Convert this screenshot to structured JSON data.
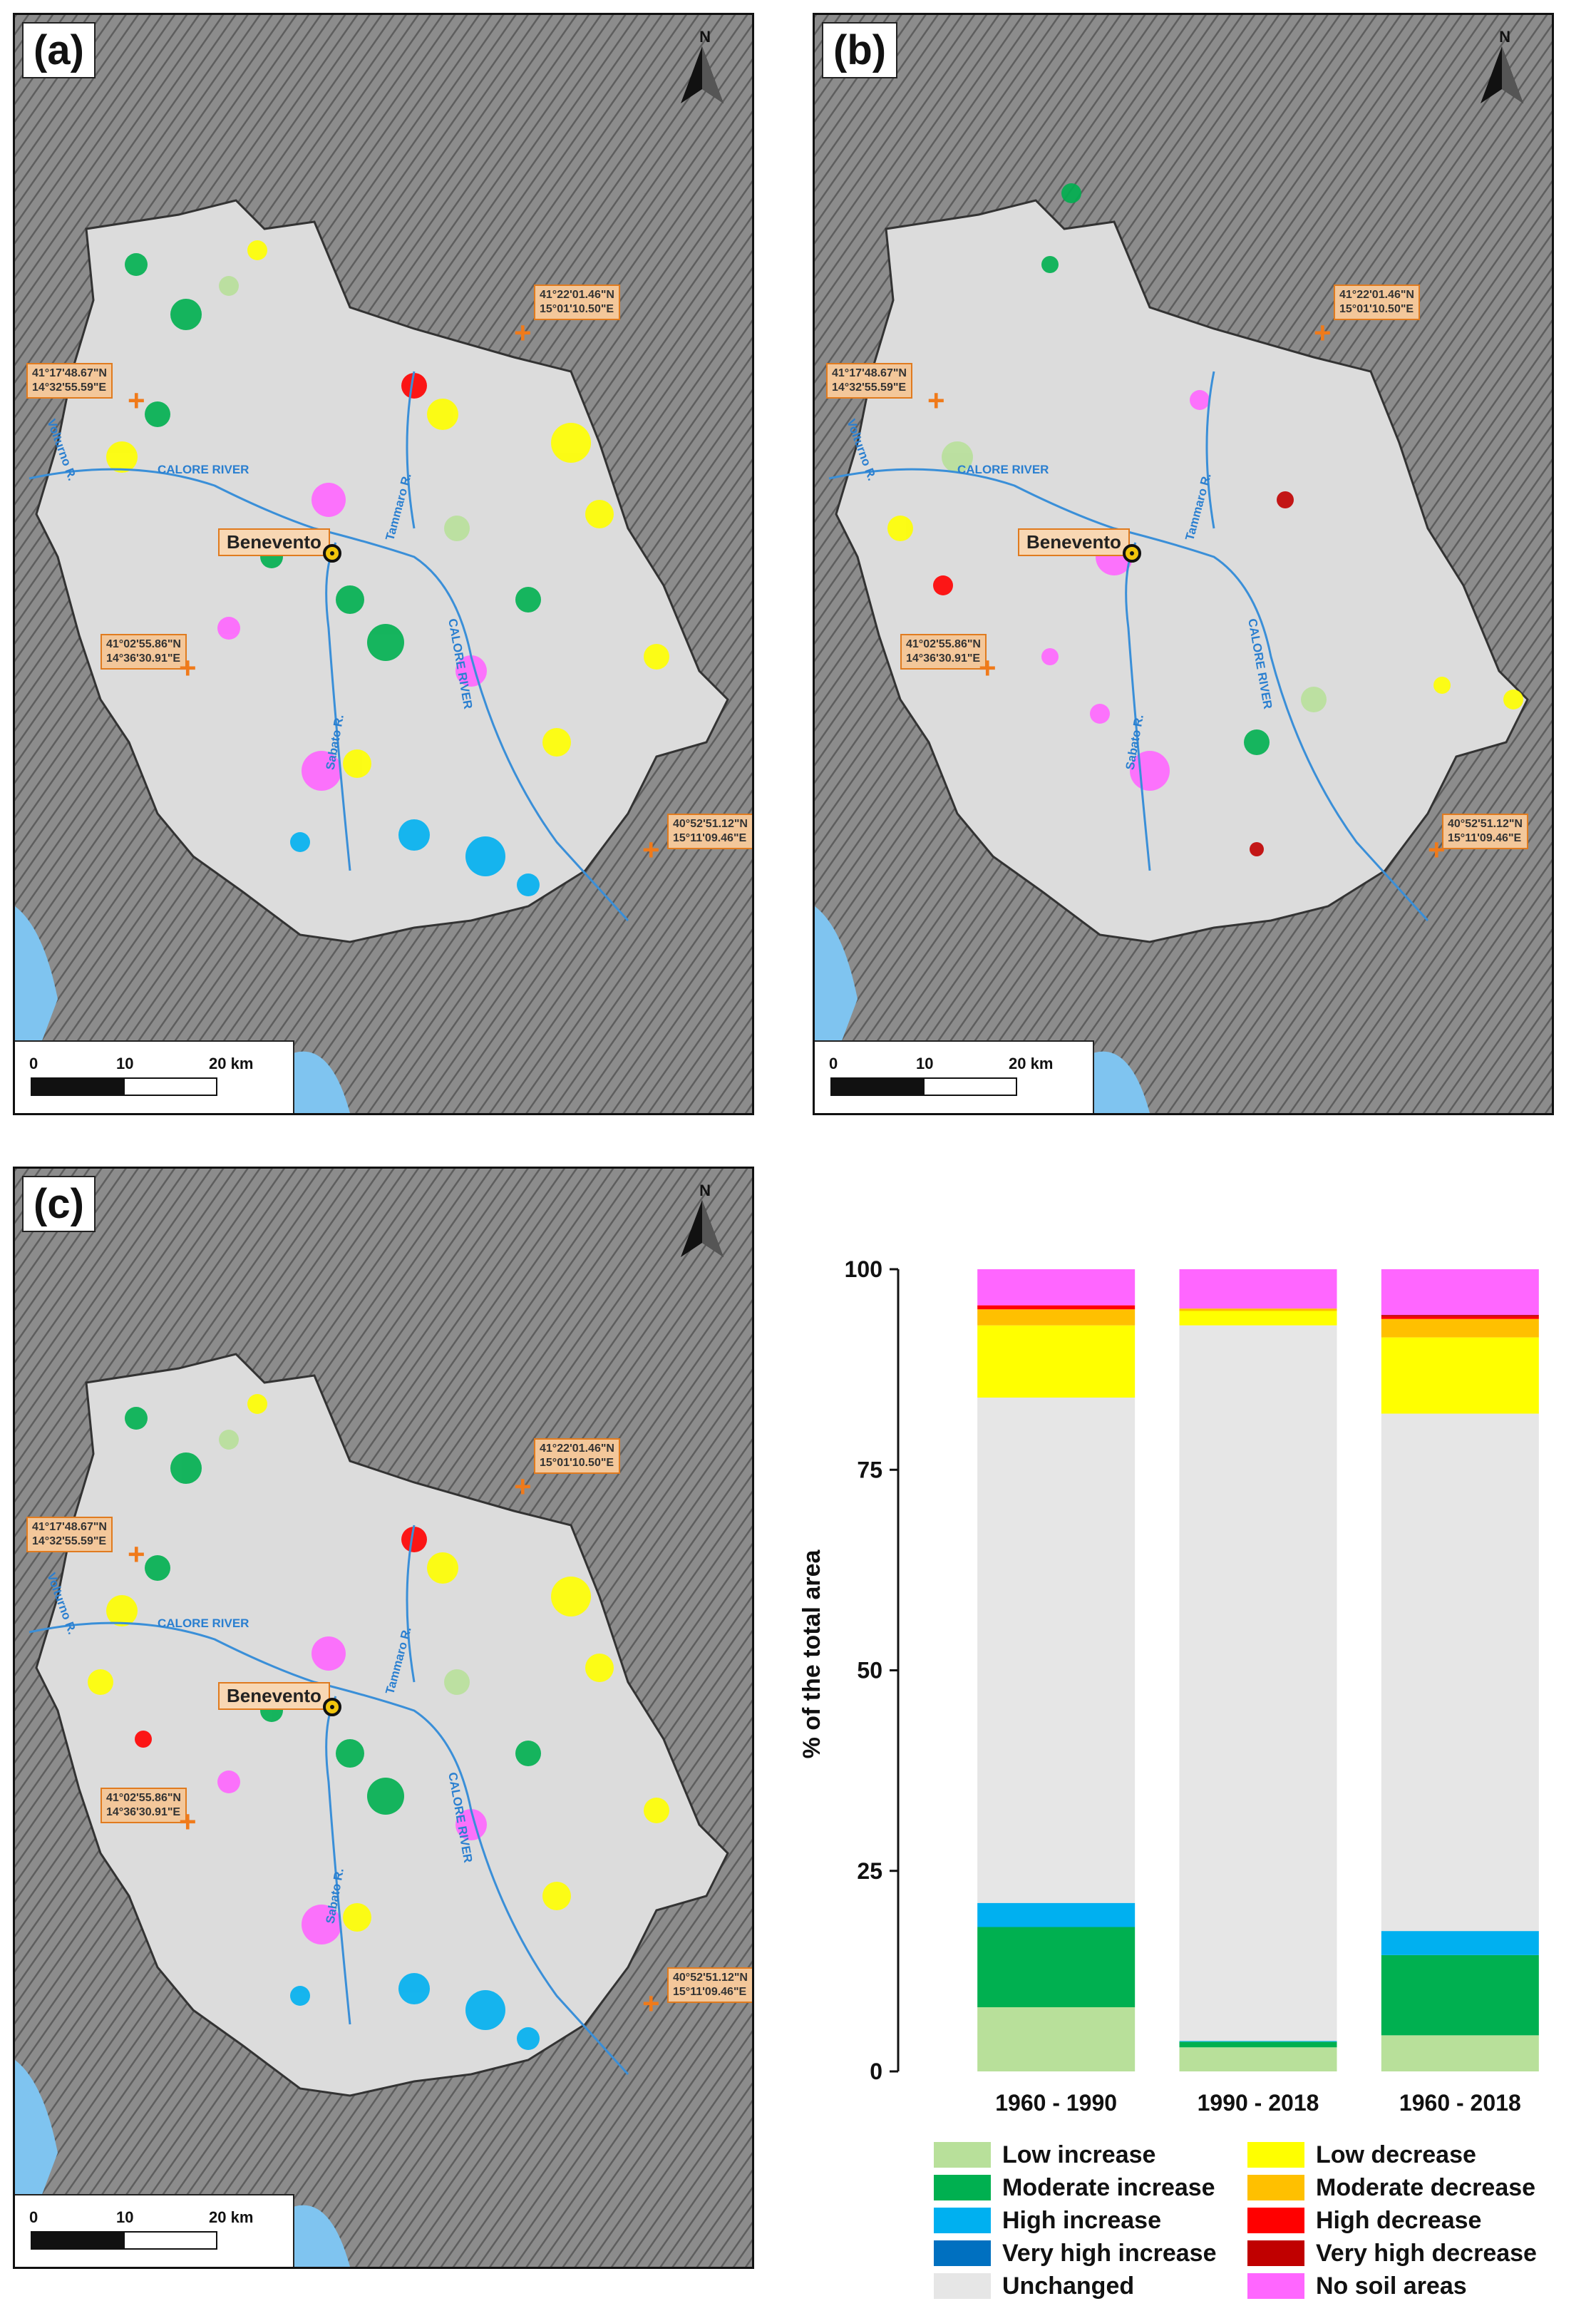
{
  "panels": [
    {
      "label": "(a)",
      "city": "Benevento",
      "north": "N",
      "scale": {
        "l0": "0",
        "l1": "10",
        "l2": "20 km"
      },
      "coords": [
        "41°22'01.46\"N\n15°01'10.50\"E",
        "41°17'48.67\"N\n14°32'55.59\"E",
        "41°02'55.86\"N\n14°36'30.91\"E",
        "40°52'51.12\"N\n15°11'09.46\"E"
      ],
      "rivers": [
        "CALORE RIVER",
        "CALORE RIVER",
        "Tammaro R.",
        "Volturno R.",
        "Sabato R."
      ]
    },
    {
      "label": "(b)",
      "city": "Benevento",
      "north": "N",
      "scale": {
        "l0": "0",
        "l1": "10",
        "l2": "20 km"
      },
      "coords": [
        "41°22'01.46\"N\n15°01'10.50\"E",
        "41°17'48.67\"N\n14°32'55.59\"E",
        "41°02'55.86\"N\n14°36'30.91\"E",
        "40°52'51.12\"N\n15°11'09.46\"E"
      ],
      "rivers": [
        "CALORE RIVER",
        "CALORE RIVER",
        "Tammaro R.",
        "Volturno R.",
        "Sabato R."
      ]
    },
    {
      "label": "(c)",
      "city": "Benevento",
      "north": "N",
      "scale": {
        "l0": "0",
        "l1": "10",
        "l2": "20 km"
      },
      "coords": [
        "41°22'01.46\"N\n15°01'10.50\"E",
        "41°17'48.67\"N\n14°32'55.59\"E",
        "41°02'55.86\"N\n14°36'30.91\"E",
        "40°52'51.12\"N\n15°11'09.46\"E"
      ],
      "rivers": [
        "CALORE RIVER",
        "CALORE RIVER",
        "Tammaro R.",
        "Volturno R.",
        "Sabato R."
      ]
    }
  ],
  "chart_data": {
    "type": "bar",
    "stacked": true,
    "ylabel": "% of the total area",
    "ylim": [
      0,
      100
    ],
    "yticks": [
      0,
      25,
      50,
      75,
      100
    ],
    "categories": [
      "1960 - 1990",
      "1990 - 2018",
      "1960 - 2018"
    ],
    "series": [
      {
        "name": "Low increase",
        "color": "#b8e09a",
        "values": [
          8,
          3,
          4.5
        ]
      },
      {
        "name": "Moderate increase",
        "color": "#00b050",
        "values": [
          10,
          0.7,
          10
        ]
      },
      {
        "name": "High increase",
        "color": "#00b0f0",
        "values": [
          3,
          0.1,
          3
        ]
      },
      {
        "name": "Very high increase",
        "color": "#0070c0",
        "values": [
          0,
          0,
          0
        ]
      },
      {
        "name": "Unchanged",
        "color": "#e6e6e6",
        "values": [
          63,
          89.2,
          64.5
        ]
      },
      {
        "name": "Low decrease",
        "color": "#ffff00",
        "values": [
          9,
          1.8,
          9.5
        ]
      },
      {
        "name": "Moderate decrease",
        "color": "#ffc000",
        "values": [
          2,
          0.3,
          2.3
        ]
      },
      {
        "name": "High decrease",
        "color": "#ff0000",
        "values": [
          0.5,
          0,
          0.3
        ]
      },
      {
        "name": "Very high decrease",
        "color": "#c00000",
        "values": [
          0,
          0,
          0.2
        ]
      },
      {
        "name": "No soil areas",
        "color": "#ff66ff",
        "values": [
          4.5,
          4.9,
          5.7
        ]
      }
    ]
  }
}
